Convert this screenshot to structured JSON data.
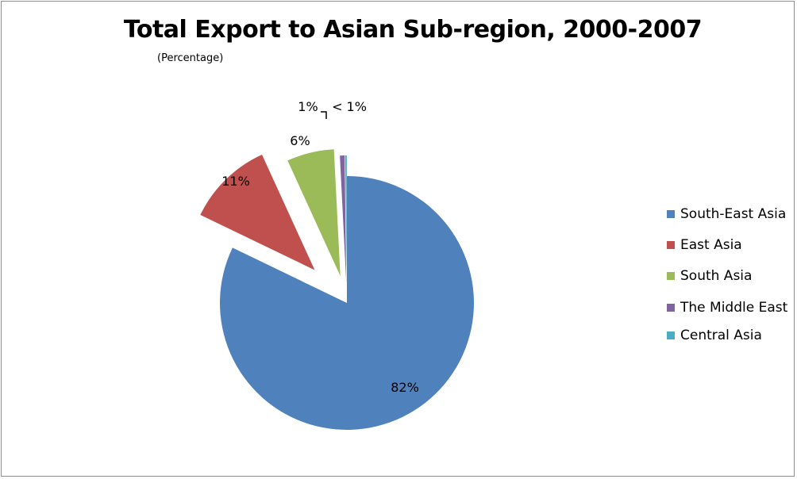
{
  "chart_data": {
    "type": "pie",
    "title": "Total Export to Asian Sub-region, 2000-2007",
    "subtitle": "(Percentage)",
    "legend_position": "right",
    "series": [
      {
        "name": "South-East Asia",
        "value": 82,
        "label": "82%",
        "color": "#4f81bd",
        "exploded": false
      },
      {
        "name": "East Asia",
        "value": 11,
        "label": "11%",
        "color": "#c0504d",
        "exploded": true
      },
      {
        "name": "South Asia",
        "value": 6,
        "label": "6%",
        "color": "#9bbb59",
        "exploded": true
      },
      {
        "name": "The Middle East",
        "value": 0.6,
        "label": "1%",
        "color": "#8064a2",
        "exploded": true
      },
      {
        "name": "Central Asia",
        "value": 0.2,
        "label": "< 1%",
        "color": "#4bacc6",
        "exploded": true
      }
    ]
  }
}
